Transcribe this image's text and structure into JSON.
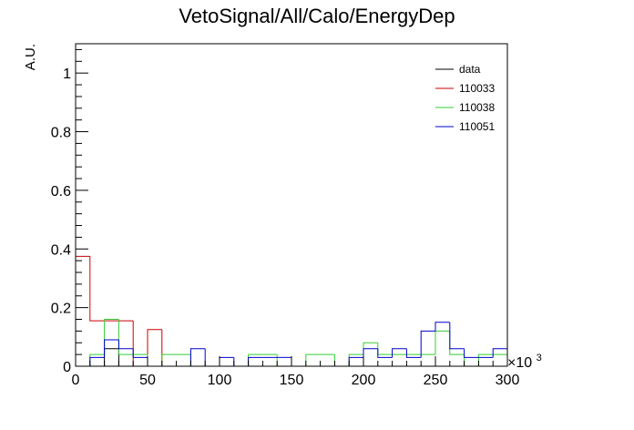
{
  "chart_data": {
    "type": "histogram",
    "title": "VetoSignal/All/Calo/EnergyDep",
    "ylabel": "A.U.",
    "xlabel": "",
    "x_multiplier_label": "×10",
    "x_multiplier_exp": "3",
    "xlim": [
      0,
      300
    ],
    "ylim": [
      0,
      1.1
    ],
    "x_ticks": [
      0,
      50,
      100,
      150,
      200,
      250,
      300
    ],
    "x_tick_labels": [
      "0",
      "50",
      "100",
      "150",
      "200",
      "250",
      "300"
    ],
    "y_ticks": [
      0,
      0.2,
      0.4,
      0.6,
      0.8,
      1
    ],
    "y_tick_labels": [
      "0",
      "0.2",
      "0.4",
      "0.6",
      "0.8",
      "1"
    ],
    "bin_edges": [
      0,
      10,
      20,
      30,
      40,
      50,
      60,
      70,
      80,
      90,
      100,
      110,
      120,
      130,
      140,
      150,
      160,
      170,
      180,
      190,
      200,
      210,
      220,
      230,
      240,
      250,
      260,
      270,
      280,
      290,
      300
    ],
    "legend_position": "top-right",
    "series": [
      {
        "name": "data",
        "color": "#000000",
        "values": [
          0,
          0,
          0.06,
          0,
          0,
          0,
          0,
          0,
          0,
          0,
          0,
          0,
          0,
          0,
          0,
          0,
          0,
          0,
          0,
          0,
          0,
          0,
          0,
          0,
          0,
          0,
          0,
          0,
          0,
          0
        ]
      },
      {
        "name": "110033",
        "color": "#cc0000",
        "values": [
          0.375,
          0.155,
          0.155,
          0.155,
          0,
          0.125,
          0,
          0,
          0,
          0,
          0,
          0,
          0,
          0,
          0,
          0,
          0,
          0,
          0,
          0,
          0,
          0,
          0,
          0,
          0,
          0,
          0,
          0,
          0,
          0
        ]
      },
      {
        "name": "110038",
        "color": "#33cc33",
        "values": [
          0,
          0.04,
          0.16,
          0.04,
          0.04,
          0,
          0.04,
          0.04,
          0,
          0,
          0,
          0,
          0.04,
          0.04,
          0,
          0,
          0.04,
          0.04,
          0,
          0.04,
          0.08,
          0.04,
          0.04,
          0.04,
          0.04,
          0.12,
          0.04,
          0,
          0.04,
          0.04
        ]
      },
      {
        "name": "110051",
        "color": "#0000cc",
        "values": [
          0,
          0.03,
          0.09,
          0.06,
          0.03,
          0,
          0,
          0,
          0.06,
          0,
          0.03,
          0,
          0.03,
          0.03,
          0.03,
          0,
          0,
          0,
          0,
          0.03,
          0.06,
          0.03,
          0.06,
          0.03,
          0.12,
          0.15,
          0.06,
          0.03,
          0.03,
          0.06
        ]
      }
    ]
  }
}
